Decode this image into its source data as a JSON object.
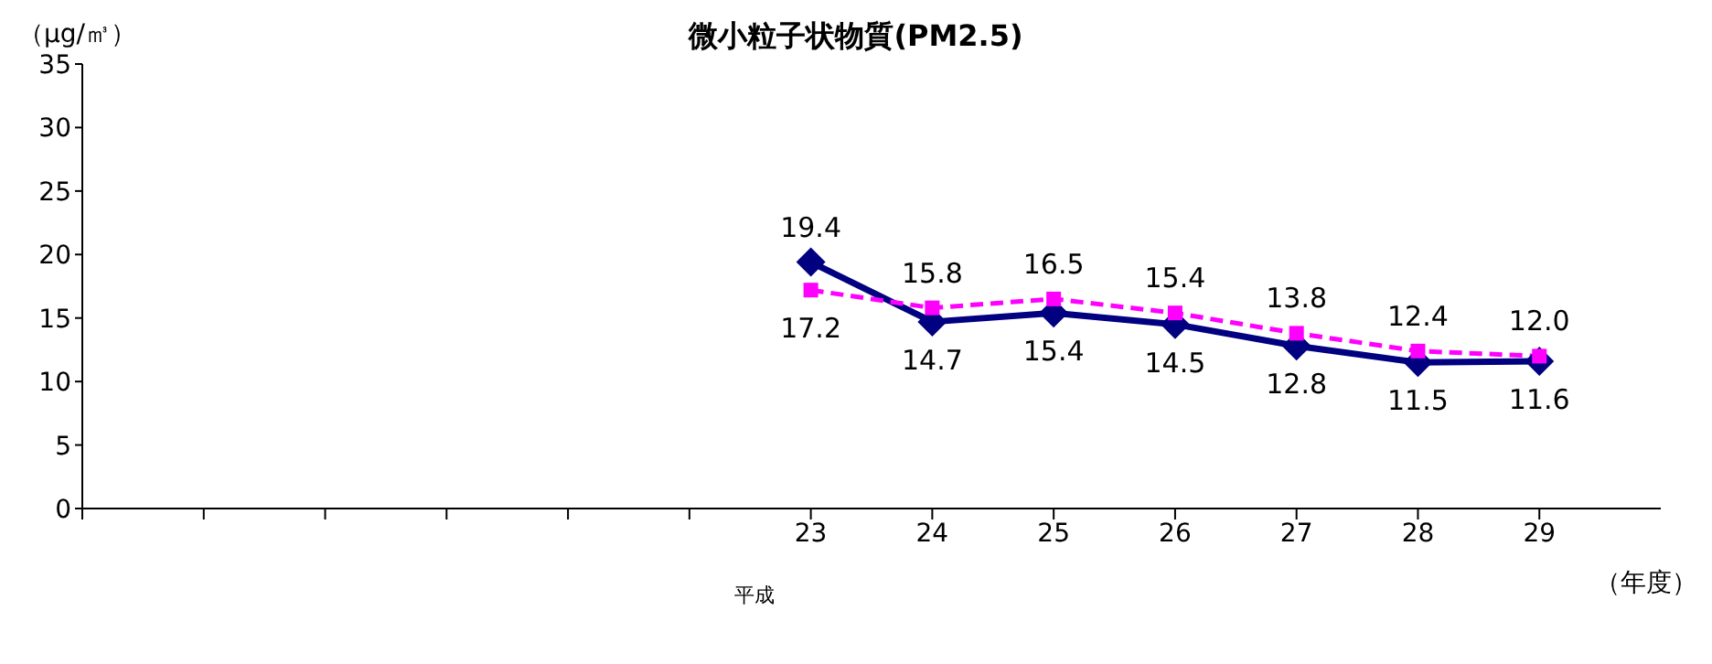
{
  "chart_data": {
    "type": "line",
    "title": "微小粒子状物質(PM2.5)",
    "ylabel": "（μg/㎥）",
    "xlabel": "（年度）",
    "annotations": [
      "平成"
    ],
    "categories": [
      null,
      null,
      null,
      null,
      null,
      null,
      "23",
      "24",
      "25",
      "26",
      "27",
      "28",
      "29"
    ],
    "series": [
      {
        "color": "#000080",
        "values": [
          null,
          null,
          null,
          null,
          null,
          null,
          19.4,
          14.7,
          15.4,
          14.5,
          12.8,
          11.5,
          11.6
        ],
        "value_labels": [
          null,
          null,
          null,
          null,
          null,
          null,
          "19.4",
          "14.7",
          "15.4",
          "14.5",
          "12.8",
          "11.5",
          "11.6"
        ],
        "marker": "diamond",
        "line_style": "solid"
      },
      {
        "color": "#ff00ff",
        "values": [
          null,
          null,
          null,
          null,
          null,
          null,
          17.2,
          15.8,
          16.5,
          15.4,
          13.8,
          12.4,
          12.0
        ],
        "value_labels": [
          null,
          null,
          null,
          null,
          null,
          null,
          "17.2",
          "15.8",
          "16.5",
          "15.4",
          "13.8",
          "12.4",
          "12.0"
        ],
        "marker": "square",
        "line_style": "dashed"
      }
    ],
    "ylim": [
      0,
      35
    ],
    "yticks": [
      0,
      5,
      10,
      15,
      20,
      25,
      30,
      35
    ]
  }
}
